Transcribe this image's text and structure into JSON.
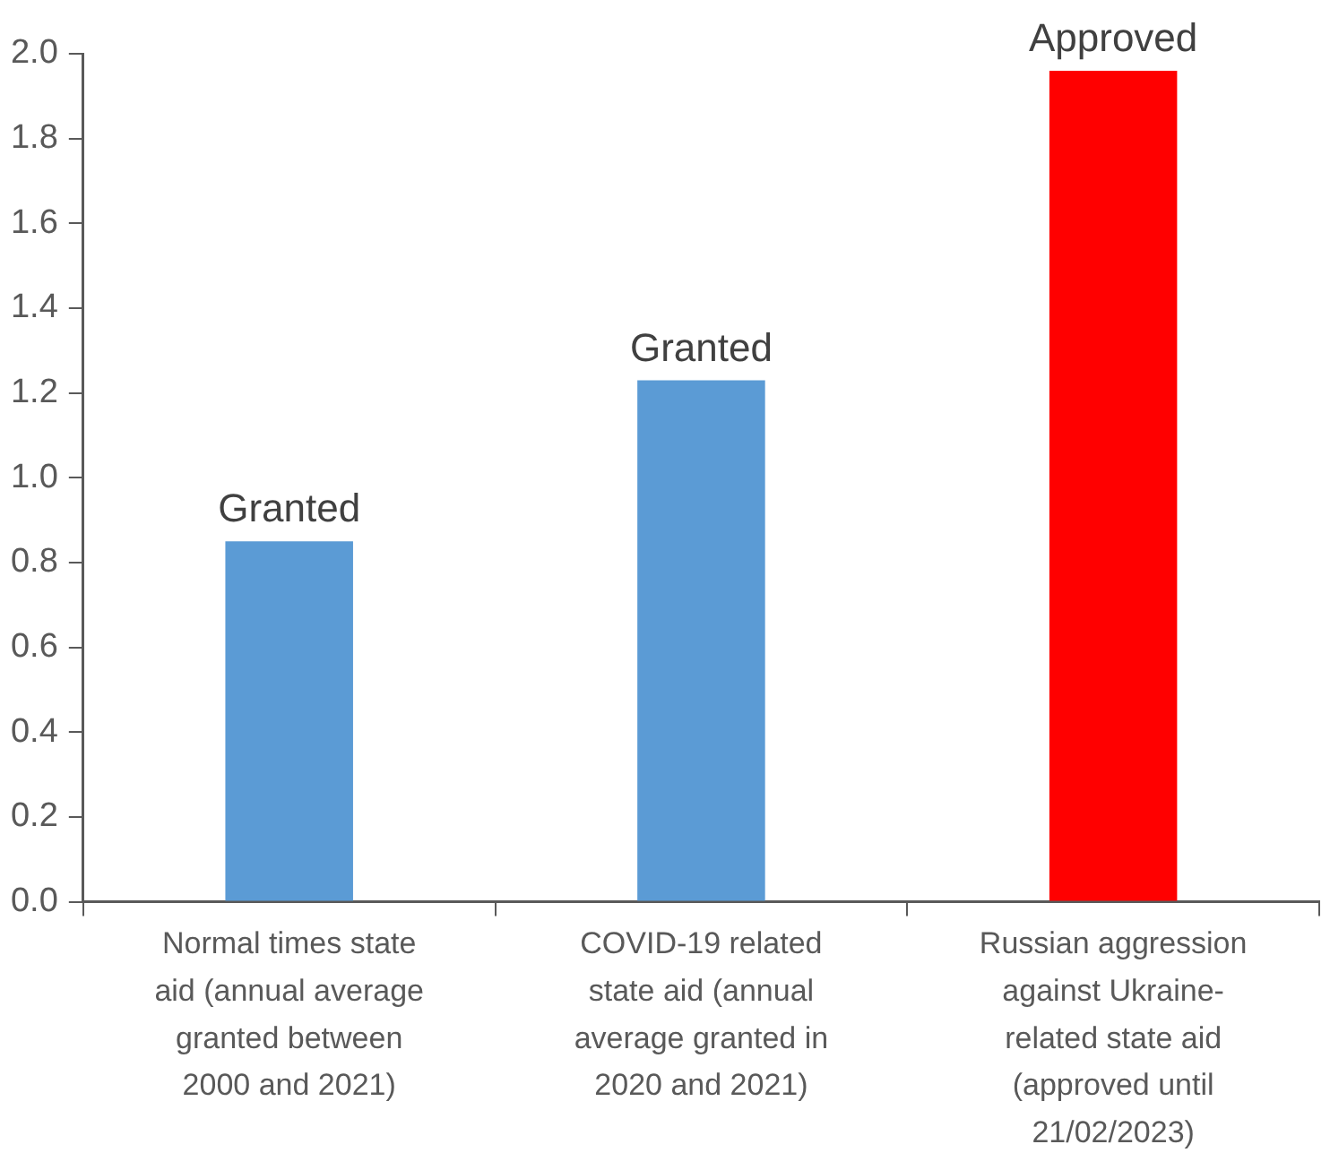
{
  "chart_data": {
    "type": "bar",
    "categories": [
      "Normal times state aid (annual average granted between 2000 and 2021)",
      "COVID-19 related state aid (annual average granted in 2020 and 2021)",
      "Russian aggression against Ukraine-related state aid (approved until 21/02/2023)"
    ],
    "values": [
      0.85,
      1.23,
      1.96
    ],
    "colors": [
      "#5b9bd5",
      "#5b9bd5",
      "#ff0000"
    ],
    "ylim": [
      0,
      2
    ],
    "yticks": [
      {
        "value": 0,
        "label": "0.0"
      },
      {
        "value": 0.2,
        "label": "0.2"
      },
      {
        "value": 0.4,
        "label": "0.4"
      },
      {
        "value": 0.6,
        "label": "0.6"
      },
      {
        "value": 0.8,
        "label": "0.8"
      },
      {
        "value": 1,
        "label": "1.0"
      },
      {
        "value": 1.2,
        "label": "1.2"
      },
      {
        "value": 1.4,
        "label": "1.4"
      },
      {
        "value": 1.6,
        "label": "1.6"
      },
      {
        "value": 1.8,
        "label": "1.8"
      },
      {
        "value": 2,
        "label": "2.0"
      }
    ],
    "grid": false,
    "legend": false,
    "annotations": [
      {
        "text": "Granted",
        "x": "Normal times state aid (annual average granted between 2000 and 2021)",
        "y": 0.85
      },
      {
        "text": "Granted",
        "x": "COVID-19 related state aid (annual average granted in 2020 and 2021)",
        "y": 1.23
      },
      {
        "text": "Approved",
        "x": "Russian aggression against Ukraine-related state aid (approved until 21/02/2023)",
        "y": 1.96
      }
    ]
  }
}
